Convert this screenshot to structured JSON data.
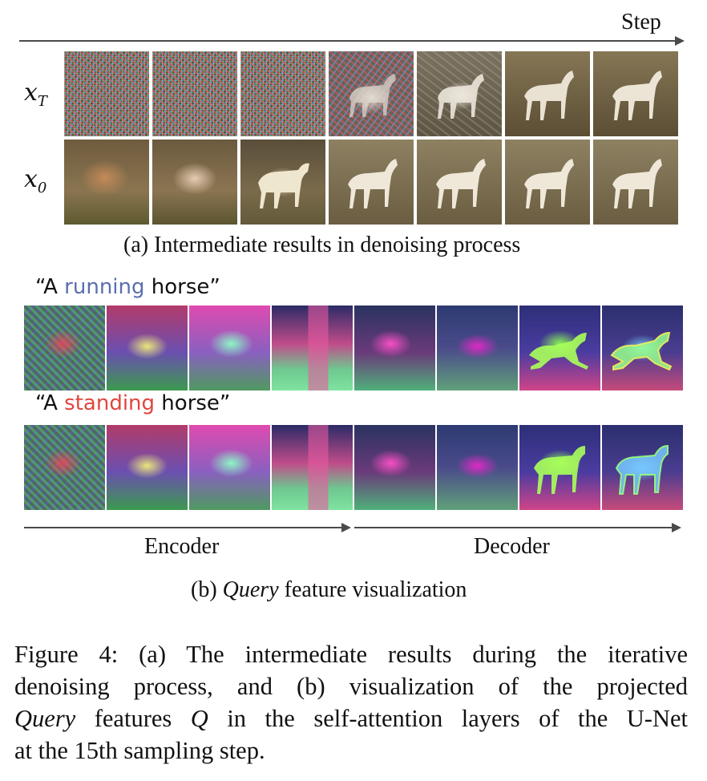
{
  "top_arrow": {
    "label": "Step"
  },
  "rows": [
    {
      "var": "x",
      "sub": "T"
    },
    {
      "var": "x",
      "sub": "0"
    }
  ],
  "caption_a": "(a) Intermediate results in denoising process",
  "prompt_running": {
    "open": "“A ",
    "word": "running",
    "close": " horse”"
  },
  "prompt_standing": {
    "open": "“A ",
    "word": "standing",
    "close": " horse”"
  },
  "encoder_label": "Encoder",
  "decoder_label": "Decoder",
  "caption_b": {
    "prefix": "(b) ",
    "italic": "Query",
    "suffix": " feature visualization"
  },
  "figure_caption": {
    "line1": "Figure 4:  (a) The intermediate results during the iterative",
    "line2": "denoising process, and (b) visualization of the projected",
    "line3_italic": "Query",
    "line3_mid": " features ",
    "line3_q": "Q",
    "line3_rest": " in the self-attention layers of the U-Net",
    "line4": "at the 15th sampling step."
  }
}
